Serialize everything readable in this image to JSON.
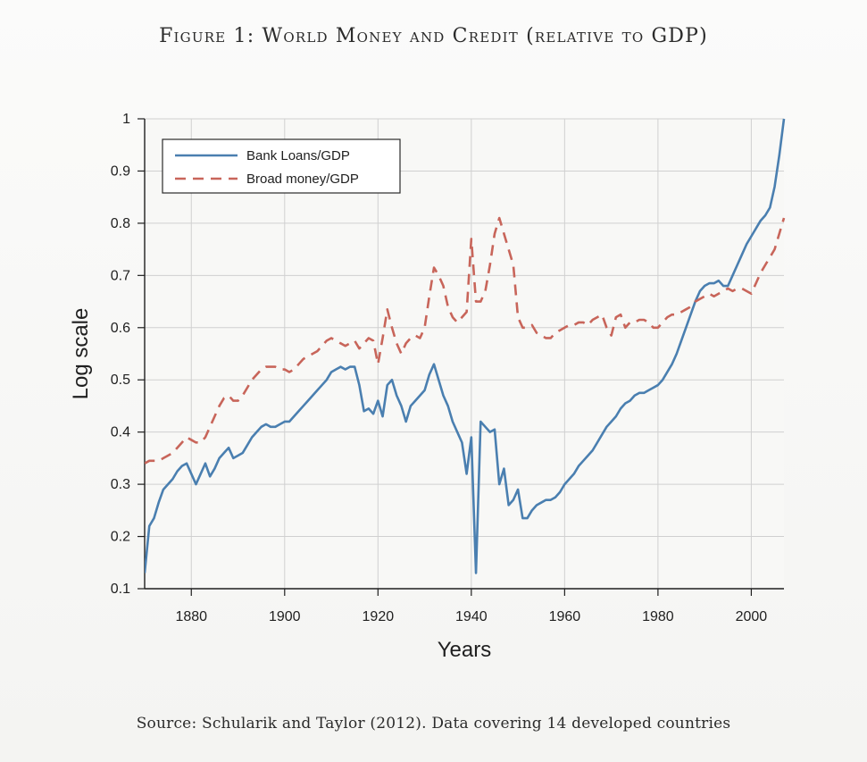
{
  "figure": {
    "title": "Figure 1: World Money and Credit (relative to GDP)",
    "source": "Source: Schularik and Taylor (2012). Data covering 14 developed countries"
  },
  "colors": {
    "bank_loans": "#4a7fb0",
    "broad_money": "#c8655a",
    "grid": "#d0d0d0",
    "axis": "#1f1f1f"
  },
  "chart_data": {
    "type": "line",
    "title": "Figure 1: World Money and Credit (relative to GDP)",
    "xlabel": "Years",
    "ylabel": "Log scale",
    "xlim": [
      1870,
      2007
    ],
    "ylim": [
      0.1,
      1.0
    ],
    "grid": true,
    "legend_position": "top-left",
    "x_ticks": [
      1880,
      1900,
      1920,
      1940,
      1960,
      1980,
      2000
    ],
    "x_tick_labels": [
      "1880",
      "1900",
      "1920",
      "1940",
      "1960",
      "1980",
      "2000"
    ],
    "y_ticks": [
      0.1,
      0.2,
      0.3,
      0.4,
      0.5,
      0.6,
      0.7,
      0.8,
      0.9,
      1.0
    ],
    "y_tick_labels": [
      "0.1",
      "0.2",
      "0.3",
      "0.4",
      "0.5",
      "0.6",
      "0.7",
      "0.8",
      "0.9",
      "1"
    ],
    "series": [
      {
        "name": "Bank Loans/GDP",
        "style": "solid",
        "points": [
          [
            1870,
            0.13
          ],
          [
            1871,
            0.22
          ],
          [
            1872,
            0.235
          ],
          [
            1873,
            0.265
          ],
          [
            1874,
            0.29
          ],
          [
            1875,
            0.3
          ],
          [
            1876,
            0.31
          ],
          [
            1877,
            0.325
          ],
          [
            1878,
            0.335
          ],
          [
            1879,
            0.34
          ],
          [
            1880,
            0.32
          ],
          [
            1881,
            0.3
          ],
          [
            1882,
            0.32
          ],
          [
            1883,
            0.34
          ],
          [
            1884,
            0.315
          ],
          [
            1885,
            0.33
          ],
          [
            1886,
            0.35
          ],
          [
            1887,
            0.36
          ],
          [
            1888,
            0.37
          ],
          [
            1889,
            0.35
          ],
          [
            1890,
            0.355
          ],
          [
            1891,
            0.36
          ],
          [
            1892,
            0.375
          ],
          [
            1893,
            0.39
          ],
          [
            1894,
            0.4
          ],
          [
            1895,
            0.41
          ],
          [
            1896,
            0.415
          ],
          [
            1897,
            0.41
          ],
          [
            1898,
            0.41
          ],
          [
            1899,
            0.415
          ],
          [
            1900,
            0.42
          ],
          [
            1901,
            0.42
          ],
          [
            1902,
            0.43
          ],
          [
            1903,
            0.44
          ],
          [
            1904,
            0.45
          ],
          [
            1905,
            0.46
          ],
          [
            1906,
            0.47
          ],
          [
            1907,
            0.48
          ],
          [
            1908,
            0.49
          ],
          [
            1909,
            0.5
          ],
          [
            1910,
            0.515
          ],
          [
            1911,
            0.52
          ],
          [
            1912,
            0.525
          ],
          [
            1913,
            0.52
          ],
          [
            1914,
            0.525
          ],
          [
            1915,
            0.525
          ],
          [
            1916,
            0.49
          ],
          [
            1917,
            0.44
          ],
          [
            1918,
            0.445
          ],
          [
            1919,
            0.435
          ],
          [
            1920,
            0.46
          ],
          [
            1921,
            0.43
          ],
          [
            1922,
            0.49
          ],
          [
            1923,
            0.5
          ],
          [
            1924,
            0.47
          ],
          [
            1925,
            0.45
          ],
          [
            1926,
            0.42
          ],
          [
            1927,
            0.45
          ],
          [
            1928,
            0.46
          ],
          [
            1929,
            0.47
          ],
          [
            1930,
            0.48
          ],
          [
            1931,
            0.51
          ],
          [
            1932,
            0.53
          ],
          [
            1933,
            0.5
          ],
          [
            1934,
            0.47
          ],
          [
            1935,
            0.45
          ],
          [
            1936,
            0.42
          ],
          [
            1937,
            0.4
          ],
          [
            1938,
            0.38
          ],
          [
            1939,
            0.32
          ],
          [
            1940,
            0.39
          ],
          [
            1941,
            0.13
          ],
          [
            1942,
            0.42
          ],
          [
            1943,
            0.41
          ],
          [
            1944,
            0.4
          ],
          [
            1945,
            0.405
          ],
          [
            1946,
            0.3
          ],
          [
            1947,
            0.33
          ],
          [
            1948,
            0.26
          ],
          [
            1949,
            0.27
          ],
          [
            1950,
            0.29
          ],
          [
            1951,
            0.235
          ],
          [
            1952,
            0.235
          ],
          [
            1953,
            0.25
          ],
          [
            1954,
            0.26
          ],
          [
            1955,
            0.265
          ],
          [
            1956,
            0.27
          ],
          [
            1957,
            0.27
          ],
          [
            1958,
            0.275
          ],
          [
            1959,
            0.285
          ],
          [
            1960,
            0.3
          ],
          [
            1961,
            0.31
          ],
          [
            1962,
            0.32
          ],
          [
            1963,
            0.335
          ],
          [
            1964,
            0.345
          ],
          [
            1965,
            0.355
          ],
          [
            1966,
            0.365
          ],
          [
            1967,
            0.38
          ],
          [
            1968,
            0.395
          ],
          [
            1969,
            0.41
          ],
          [
            1970,
            0.42
          ],
          [
            1971,
            0.43
          ],
          [
            1972,
            0.445
          ],
          [
            1973,
            0.455
          ],
          [
            1974,
            0.46
          ],
          [
            1975,
            0.47
          ],
          [
            1976,
            0.475
          ],
          [
            1977,
            0.475
          ],
          [
            1978,
            0.48
          ],
          [
            1979,
            0.485
          ],
          [
            1980,
            0.49
          ],
          [
            1981,
            0.5
          ],
          [
            1982,
            0.515
          ],
          [
            1983,
            0.53
          ],
          [
            1984,
            0.55
          ],
          [
            1985,
            0.575
          ],
          [
            1986,
            0.6
          ],
          [
            1987,
            0.625
          ],
          [
            1988,
            0.65
          ],
          [
            1989,
            0.67
          ],
          [
            1990,
            0.68
          ],
          [
            1991,
            0.685
          ],
          [
            1992,
            0.685
          ],
          [
            1993,
            0.69
          ],
          [
            1994,
            0.68
          ],
          [
            1995,
            0.68
          ],
          [
            1996,
            0.7
          ],
          [
            1997,
            0.72
          ],
          [
            1998,
            0.74
          ],
          [
            1999,
            0.76
          ],
          [
            2000,
            0.775
          ],
          [
            2001,
            0.79
          ],
          [
            2002,
            0.805
          ],
          [
            2003,
            0.815
          ],
          [
            2004,
            0.83
          ],
          [
            2005,
            0.87
          ],
          [
            2006,
            0.93
          ],
          [
            2007,
            1.0
          ]
        ]
      },
      {
        "name": "Broad money/GDP",
        "style": "dashed",
        "points": [
          [
            1870,
            0.34
          ],
          [
            1871,
            0.345
          ],
          [
            1872,
            0.345
          ],
          [
            1873,
            0.345
          ],
          [
            1874,
            0.35
          ],
          [
            1875,
            0.355
          ],
          [
            1876,
            0.36
          ],
          [
            1877,
            0.37
          ],
          [
            1878,
            0.38
          ],
          [
            1879,
            0.39
          ],
          [
            1880,
            0.385
          ],
          [
            1881,
            0.38
          ],
          [
            1882,
            0.38
          ],
          [
            1883,
            0.39
          ],
          [
            1884,
            0.41
          ],
          [
            1885,
            0.43
          ],
          [
            1886,
            0.45
          ],
          [
            1887,
            0.465
          ],
          [
            1888,
            0.47
          ],
          [
            1889,
            0.46
          ],
          [
            1890,
            0.46
          ],
          [
            1891,
            0.47
          ],
          [
            1892,
            0.485
          ],
          [
            1893,
            0.5
          ],
          [
            1894,
            0.51
          ],
          [
            1895,
            0.52
          ],
          [
            1896,
            0.525
          ],
          [
            1897,
            0.525
          ],
          [
            1898,
            0.525
          ],
          [
            1899,
            0.52
          ],
          [
            1900,
            0.52
          ],
          [
            1901,
            0.515
          ],
          [
            1902,
            0.52
          ],
          [
            1903,
            0.53
          ],
          [
            1904,
            0.54
          ],
          [
            1905,
            0.545
          ],
          [
            1906,
            0.55
          ],
          [
            1907,
            0.555
          ],
          [
            1908,
            0.565
          ],
          [
            1909,
            0.575
          ],
          [
            1910,
            0.58
          ],
          [
            1911,
            0.575
          ],
          [
            1912,
            0.57
          ],
          [
            1913,
            0.565
          ],
          [
            1914,
            0.57
          ],
          [
            1915,
            0.575
          ],
          [
            1916,
            0.56
          ],
          [
            1917,
            0.57
          ],
          [
            1918,
            0.58
          ],
          [
            1919,
            0.575
          ],
          [
            1920,
            0.53
          ],
          [
            1921,
            0.58
          ],
          [
            1922,
            0.635
          ],
          [
            1923,
            0.6
          ],
          [
            1924,
            0.57
          ],
          [
            1925,
            0.55
          ],
          [
            1926,
            0.57
          ],
          [
            1927,
            0.58
          ],
          [
            1928,
            0.585
          ],
          [
            1929,
            0.58
          ],
          [
            1930,
            0.6
          ],
          [
            1931,
            0.66
          ],
          [
            1932,
            0.715
          ],
          [
            1933,
            0.7
          ],
          [
            1934,
            0.68
          ],
          [
            1935,
            0.64
          ],
          [
            1936,
            0.62
          ],
          [
            1937,
            0.61
          ],
          [
            1938,
            0.62
          ],
          [
            1939,
            0.63
          ],
          [
            1940,
            0.77
          ],
          [
            1941,
            0.65
          ],
          [
            1942,
            0.65
          ],
          [
            1943,
            0.67
          ],
          [
            1944,
            0.72
          ],
          [
            1945,
            0.78
          ],
          [
            1946,
            0.81
          ],
          [
            1947,
            0.78
          ],
          [
            1948,
            0.75
          ],
          [
            1949,
            0.72
          ],
          [
            1950,
            0.62
          ],
          [
            1951,
            0.6
          ],
          [
            1952,
            0.6
          ],
          [
            1953,
            0.605
          ],
          [
            1954,
            0.59
          ],
          [
            1955,
            0.585
          ],
          [
            1956,
            0.58
          ],
          [
            1957,
            0.58
          ],
          [
            1958,
            0.59
          ],
          [
            1959,
            0.595
          ],
          [
            1960,
            0.6
          ],
          [
            1961,
            0.605
          ],
          [
            1962,
            0.605
          ],
          [
            1963,
            0.61
          ],
          [
            1964,
            0.61
          ],
          [
            1965,
            0.605
          ],
          [
            1966,
            0.615
          ],
          [
            1967,
            0.62
          ],
          [
            1968,
            0.625
          ],
          [
            1969,
            0.6
          ],
          [
            1970,
            0.585
          ],
          [
            1971,
            0.62
          ],
          [
            1972,
            0.625
          ],
          [
            1973,
            0.6
          ],
          [
            1974,
            0.61
          ],
          [
            1975,
            0.61
          ],
          [
            1976,
            0.615
          ],
          [
            1977,
            0.615
          ],
          [
            1978,
            0.61
          ],
          [
            1979,
            0.6
          ],
          [
            1980,
            0.6
          ],
          [
            1981,
            0.61
          ],
          [
            1982,
            0.62
          ],
          [
            1983,
            0.625
          ],
          [
            1984,
            0.625
          ],
          [
            1985,
            0.63
          ],
          [
            1986,
            0.635
          ],
          [
            1987,
            0.64
          ],
          [
            1988,
            0.65
          ],
          [
            1989,
            0.655
          ],
          [
            1990,
            0.66
          ],
          [
            1991,
            0.665
          ],
          [
            1992,
            0.66
          ],
          [
            1993,
            0.665
          ],
          [
            1994,
            0.67
          ],
          [
            1995,
            0.675
          ],
          [
            1996,
            0.67
          ],
          [
            1997,
            0.675
          ],
          [
            1998,
            0.675
          ],
          [
            1999,
            0.67
          ],
          [
            2000,
            0.665
          ],
          [
            2001,
            0.685
          ],
          [
            2002,
            0.705
          ],
          [
            2003,
            0.72
          ],
          [
            2004,
            0.735
          ],
          [
            2005,
            0.75
          ],
          [
            2006,
            0.78
          ],
          [
            2007,
            0.81
          ]
        ]
      }
    ]
  }
}
